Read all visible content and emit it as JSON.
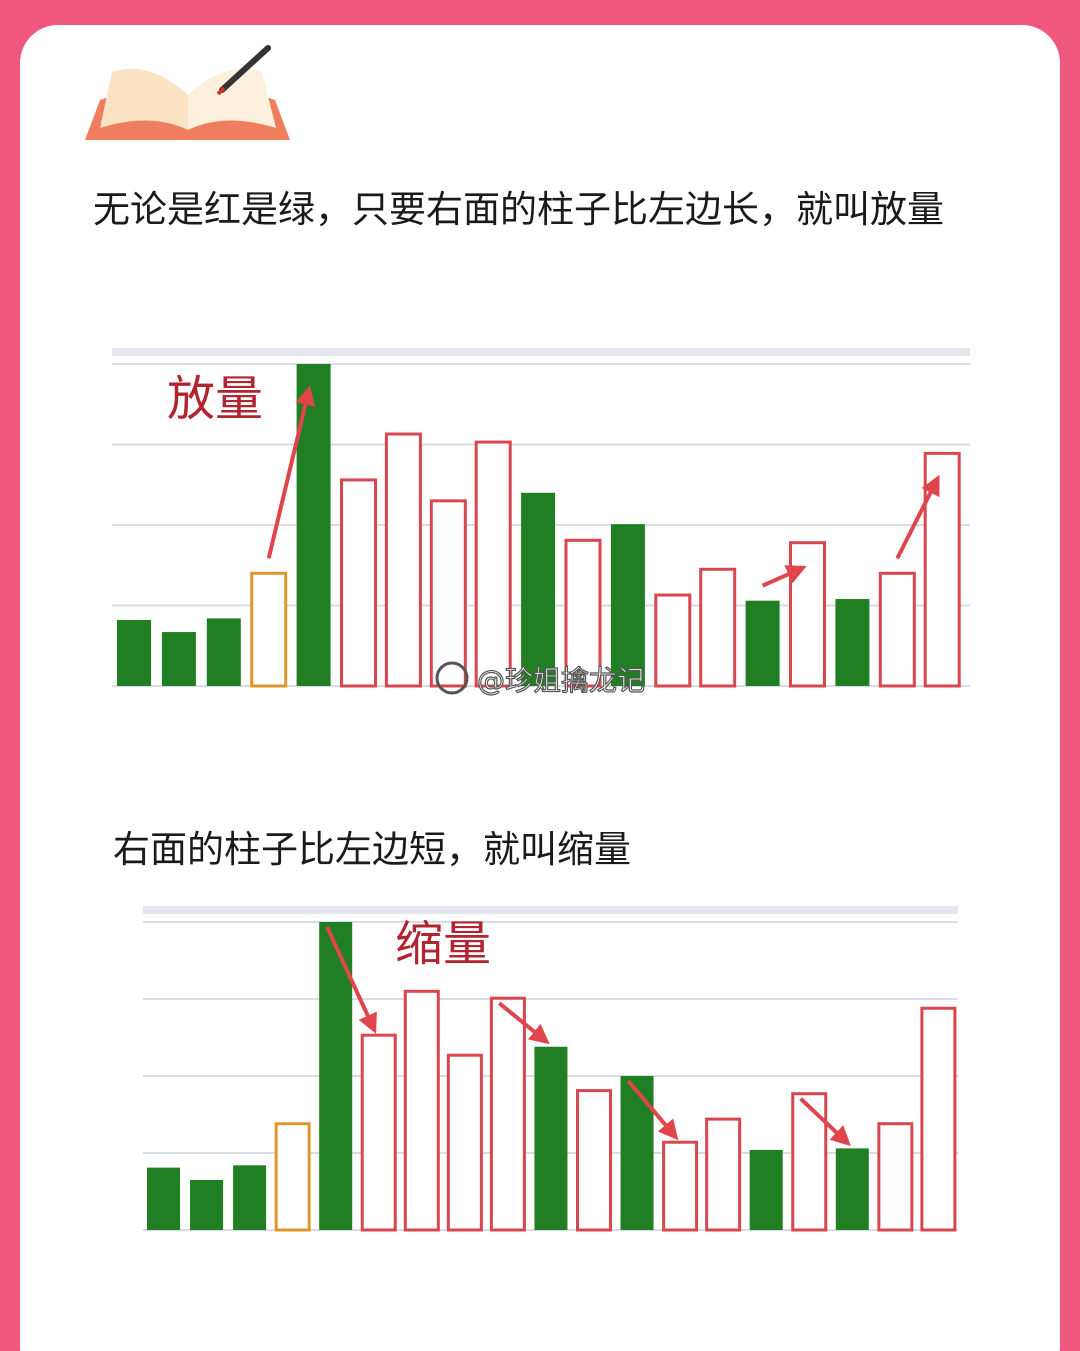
{
  "intro": "无论是红是绿，只要右面的柱子比左边长，就叫放量",
  "caption": "右面的柱子比左边短，就叫缩量",
  "watermark": "@珍姐擒龙记",
  "chart_data": [
    {
      "type": "bar",
      "annotation": "放量",
      "values": [
        0.82,
        0.67,
        0.84,
        1.4,
        4.0,
        2.56,
        3.13,
        2.3,
        3.03,
        2.4,
        1.81,
        2.01,
        1.13,
        1.45,
        1.06,
        1.78,
        1.08,
        1.4,
        2.89
      ],
      "colors": [
        "#1f7f22",
        "#1f7f22",
        "#1f7f22",
        "#e0962a",
        "#1f7f22",
        "#d8474f",
        "#d8474f",
        "#d8474f",
        "#d8474f",
        "#1f7f22",
        "#d8474f",
        "#1f7f22",
        "#d8474f",
        "#d8474f",
        "#1f7f22",
        "#d8474f",
        "#1f7f22",
        "#d8474f",
        "#d8474f"
      ],
      "filled": [
        true,
        true,
        true,
        false,
        true,
        false,
        false,
        false,
        false,
        true,
        false,
        true,
        false,
        false,
        true,
        false,
        true,
        false,
        false
      ],
      "ylim": [
        0,
        4
      ],
      "yticks": [
        0,
        1,
        2,
        3,
        4
      ],
      "grid": true
    },
    {
      "type": "bar",
      "annotation": "缩量",
      "values": [
        0.81,
        0.65,
        0.84,
        1.38,
        4.0,
        2.53,
        3.1,
        2.27,
        3.01,
        2.38,
        1.81,
        2.0,
        1.14,
        1.44,
        1.04,
        1.77,
        1.06,
        1.38,
        2.88
      ],
      "colors": [
        "#1f7f22",
        "#1f7f22",
        "#1f7f22",
        "#e0962a",
        "#1f7f22",
        "#d8474f",
        "#d8474f",
        "#d8474f",
        "#d8474f",
        "#1f7f22",
        "#d8474f",
        "#1f7f22",
        "#d8474f",
        "#d8474f",
        "#1f7f22",
        "#d8474f",
        "#1f7f22",
        "#d8474f",
        "#d8474f"
      ],
      "filled": [
        true,
        true,
        true,
        false,
        true,
        false,
        false,
        false,
        false,
        true,
        false,
        true,
        false,
        false,
        true,
        false,
        true,
        false,
        false
      ],
      "ylim": [
        0,
        4
      ],
      "yticks": [
        0,
        1,
        2,
        3,
        4
      ],
      "grid": true
    }
  ]
}
